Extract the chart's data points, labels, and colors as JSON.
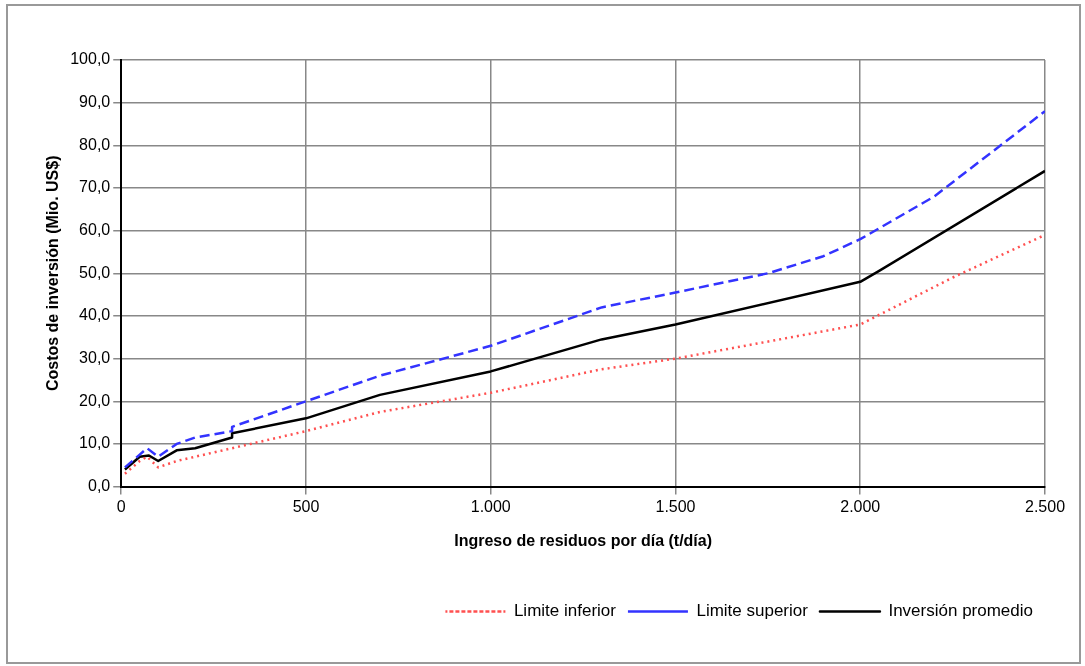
{
  "chart_data": {
    "type": "line",
    "xlabel": "Ingreso de residuos por día (t/día)",
    "ylabel": "Costos de inversión (Mio. US$)",
    "xlim": [
      0,
      2500
    ],
    "xticks": [
      0,
      500,
      {
        "value": 1000,
        "label": "1.000"
      },
      {
        "value": 1500,
        "label": "1.500"
      },
      {
        "value": 2000,
        "label": "2.000"
      },
      {
        "value": 2500,
        "label": "2.500"
      }
    ],
    "ylim": [
      0,
      100
    ],
    "yticks": [
      {
        "value": 0,
        "label": "0,0"
      },
      {
        "value": 10,
        "label": "10,0"
      },
      {
        "value": 20,
        "label": "20,0"
      },
      {
        "value": 30,
        "label": "30,0"
      },
      {
        "value": 40,
        "label": "40,0"
      },
      {
        "value": 50,
        "label": "50,0"
      },
      {
        "value": 60,
        "label": "60,0"
      },
      {
        "value": 70,
        "label": "70,0"
      },
      {
        "value": 80,
        "label": "80,0"
      },
      {
        "value": 90,
        "label": "90,0"
      },
      {
        "value": 100,
        "label": "100,0"
      }
    ],
    "grid": true,
    "legend": "bottom",
    "marker": "none",
    "series": [
      {
        "name": "Limite inferior",
        "color": "#ff5050",
        "line_style": "dotted",
        "x": [
          10,
          50,
          70,
          100,
          150,
          300,
          500,
          700,
          1000,
          1300,
          1500,
          2000,
          2250,
          2500
        ],
        "values": [
          3,
          6,
          7,
          4.5,
          6,
          9,
          13,
          17.5,
          22,
          27.5,
          30,
          38,
          49,
          59
        ]
      },
      {
        "name": "Limite superior",
        "color": "#3333ff",
        "line_style": "dashed",
        "x": [
          10,
          50,
          70,
          100,
          150,
          200,
          300,
          300,
          500,
          700,
          1000,
          1300,
          1500,
          1750,
          1900,
          2000,
          2200,
          2500
        ],
        "values": [
          4.5,
          7.5,
          9,
          7,
          10,
          11.5,
          13,
          14,
          20,
          26,
          33,
          42,
          45.5,
          50,
          54,
          58,
          68,
          88
        ]
      },
      {
        "name": "Inversión promedio",
        "color": "#000000",
        "line_style": "solid",
        "x": [
          10,
          50,
          75,
          100,
          150,
          200,
          300,
          300,
          500,
          700,
          1000,
          1300,
          1500,
          2000,
          2050,
          2500
        ],
        "values": [
          4,
          7,
          7.3,
          6,
          8.5,
          9,
          11.5,
          12.5,
          16,
          21.5,
          27,
          34.5,
          38,
          48,
          50.5,
          74
        ]
      }
    ]
  }
}
